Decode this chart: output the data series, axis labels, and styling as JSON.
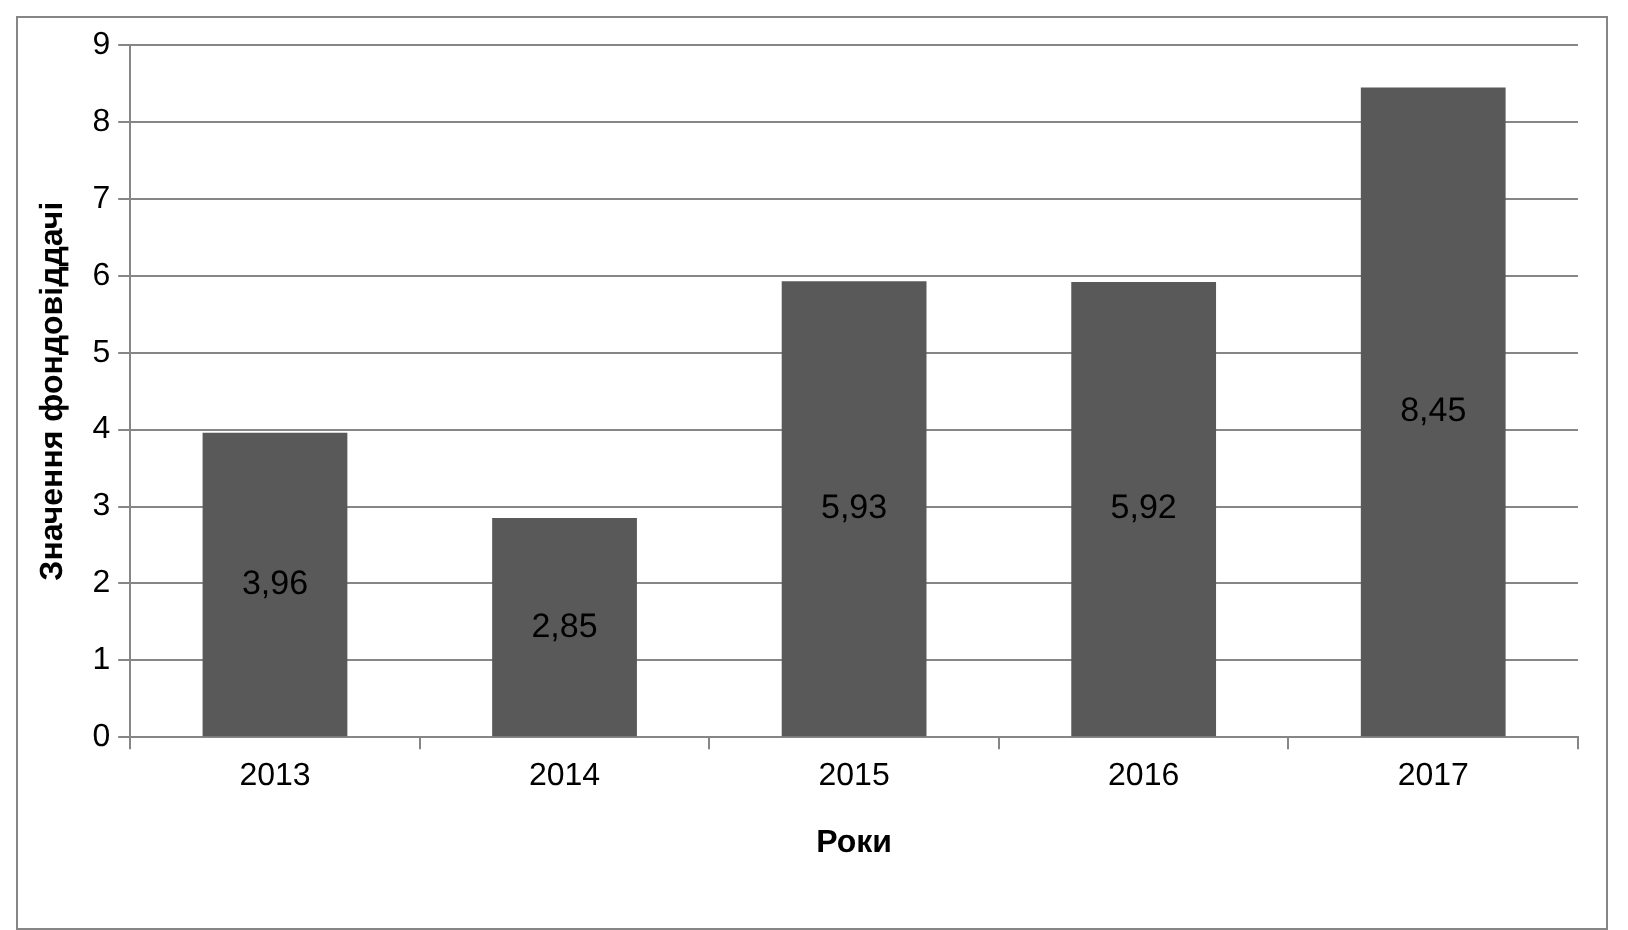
{
  "chart_data": {
    "type": "bar",
    "xlabel": "Роки",
    "ylabel": "Значення фондовіддачі",
    "categories": [
      "2013",
      "2014",
      "2015",
      "2016",
      "2017"
    ],
    "values": [
      3.96,
      2.85,
      5.93,
      5.92,
      8.45
    ],
    "value_labels": [
      "3,96",
      "2,85",
      "5,93",
      "5,92",
      "8,45"
    ],
    "color": "#595959",
    "ylim": [
      0,
      9
    ],
    "yticks": [
      0,
      1,
      2,
      3,
      4,
      5,
      6,
      7,
      8,
      9
    ],
    "grid": "y",
    "legend": false
  }
}
